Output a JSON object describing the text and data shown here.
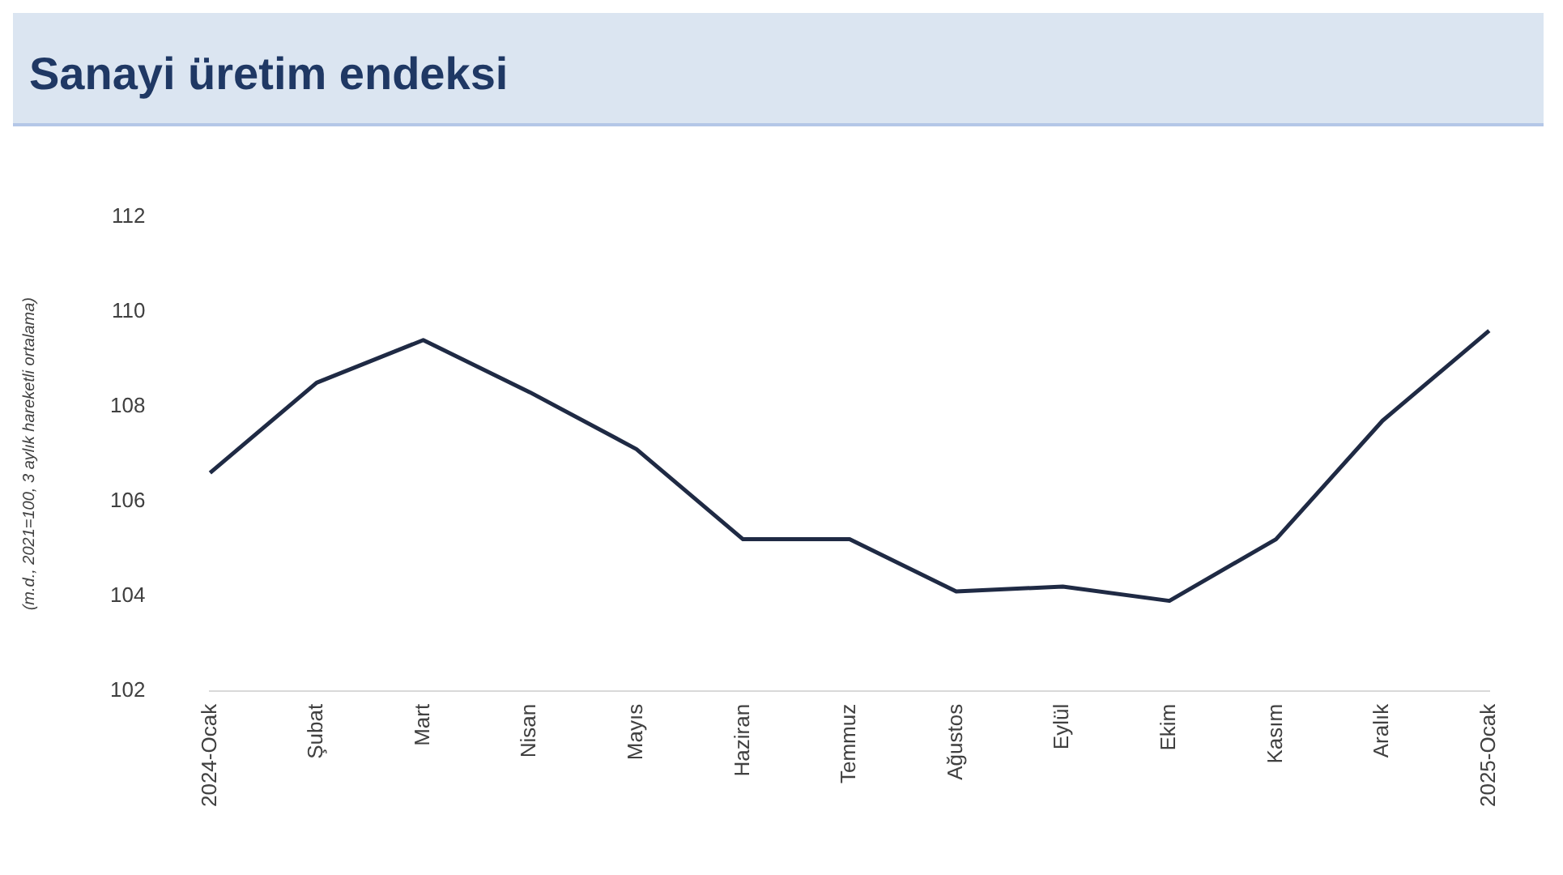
{
  "chart_data": {
    "type": "line",
    "title": "Sanayi üretim endeksi",
    "ylabel": "(m.d., 2021=100, 3 aylık hareketli ortalama)",
    "categories": [
      "2024-Ocak",
      "Şubat",
      "Mart",
      "Nisan",
      "Mayıs",
      "Haziran",
      "Temmuz",
      "Ağustos",
      "Eylül",
      "Ekim",
      "Kasım",
      "Aralık",
      "2025-Ocak"
    ],
    "series": [
      {
        "color": "#1f2a44",
        "values": [
          106.6,
          108.5,
          109.4,
          108.3,
          107.1,
          105.2,
          105.2,
          104.1,
          104.2,
          103.9,
          105.2,
          107.7,
          109.6
        ]
      }
    ],
    "ylim": [
      102,
      112
    ],
    "yticks": [
      102,
      104,
      106,
      108,
      110,
      112
    ],
    "grid": false,
    "legend": false,
    "marker": "none",
    "line_style": "solid"
  }
}
